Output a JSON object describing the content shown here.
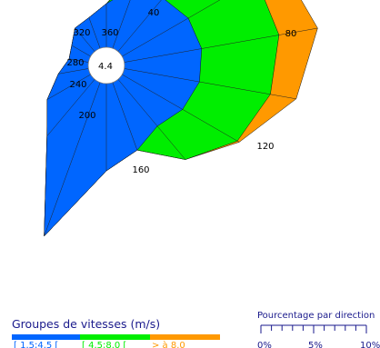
{
  "chart_data": {
    "type": "radar",
    "title": "",
    "calm_value": "4.4",
    "directions": [
      0,
      20,
      40,
      60,
      80,
      100,
      120,
      140,
      160,
      180,
      200,
      220,
      240,
      260,
      280,
      300,
      320,
      340
    ],
    "direction_labels": [
      "360",
      "40",
      "80",
      "120",
      "160",
      "200",
      "240",
      "280",
      "320"
    ],
    "series": [
      {
        "name": "[ 1.5;4.5 [",
        "color": "#0066ff",
        "values": [
          2.0,
          3.0,
          3.2,
          3.5,
          3.6,
          3.5,
          3.2,
          2.8,
          3.3,
          4.0,
          7.5,
          3.4,
          2.3,
          1.4,
          0.9,
          1.0,
          1.4,
          1.5
        ]
      },
      {
        "name": "[ 4.5;8.0 [",
        "color": "#00ee00",
        "values": [
          2.0,
          3.8,
          5.5,
          7.1,
          7.2,
          6.8,
          6.1,
          4.8,
          3.3,
          4.0,
          7.5,
          3.4,
          2.3,
          1.4,
          0.9,
          1.0,
          1.4,
          1.5
        ]
      },
      {
        "name": "> à 8.0",
        "color": "#ff9900",
        "values": [
          2.0,
          4.3,
          6.7,
          8.4,
          9.0,
          8.0,
          6.2,
          4.8,
          3.3,
          4.0,
          7.5,
          3.4,
          2.3,
          1.4,
          0.9,
          1.0,
          1.4,
          1.5
        ]
      }
    ],
    "scale_max": 10
  },
  "legend": {
    "title": "Groupes de vitesses (m/s)",
    "items": [
      {
        "label": "[ 1.5;4.5 [",
        "color": "#0066ff"
      },
      {
        "label": "[ 4.5;8.0 [",
        "color": "#00ee00"
      },
      {
        "label": "> à 8.0",
        "color": "#ff9900"
      }
    ]
  },
  "scale": {
    "title": "Pourcentage par direction",
    "ticks": [
      "0%",
      "5%",
      "10%"
    ]
  }
}
